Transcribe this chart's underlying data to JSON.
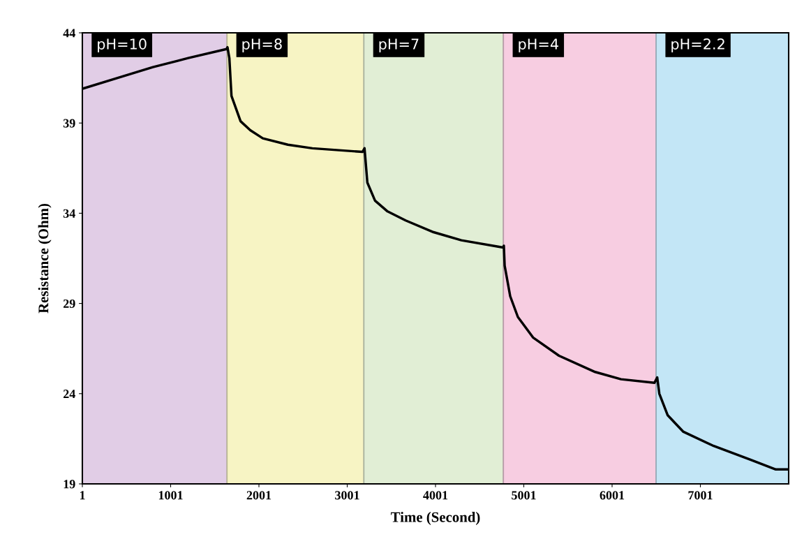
{
  "chart_data": {
    "type": "line",
    "xlabel": "Time (Second)",
    "ylabel": "Resistance (Ohm)",
    "xlim": [
      1,
      8001
    ],
    "ylim": [
      19,
      44
    ],
    "xticks": [
      1,
      1001,
      2001,
      3001,
      4001,
      5001,
      6001,
      7001
    ],
    "yticks": [
      19,
      24,
      29,
      34,
      39,
      44
    ],
    "grid": false,
    "legend": false,
    "marker": "none",
    "line_style": "solid",
    "series": [
      {
        "color": "#000000",
        "x": [
          1,
          400,
          800,
          1200,
          1634,
          1645,
          1666,
          1690,
          1793,
          1903,
          2045,
          2329,
          2606,
          3174,
          3197,
          3229,
          3316,
          3458,
          3663,
          3979,
          4294,
          4768,
          4775,
          4784,
          4847,
          4934,
          5108,
          5400,
          5810,
          6102,
          6481,
          6512,
          6536,
          6631,
          6805,
          7152,
          7563,
          7855,
          7981
        ],
        "values": [
          40.9,
          41.5,
          42.1,
          42.6,
          43.1,
          43.2,
          42.6,
          40.5,
          39.1,
          38.6,
          38.15,
          37.8,
          37.6,
          37.4,
          37.6,
          35.7,
          34.7,
          34.1,
          33.6,
          32.95,
          32.5,
          32.1,
          32.2,
          31.1,
          29.4,
          28.25,
          27.1,
          26.1,
          25.2,
          24.8,
          24.6,
          24.9,
          24.0,
          22.8,
          21.9,
          21.1,
          20.35,
          19.8,
          19.8
        ]
      }
    ],
    "bands": [
      {
        "axis": "x",
        "from": 1,
        "to": 1640,
        "label": "pH=10",
        "color": "#e1cde6"
      },
      {
        "axis": "x",
        "from": 1640,
        "to": 3190,
        "label": "pH=8",
        "color": "#f7f4c4"
      },
      {
        "axis": "x",
        "from": 3190,
        "to": 4770,
        "label": "pH=7",
        "color": "#e1eed5"
      },
      {
        "axis": "x",
        "from": 4770,
        "to": 6500,
        "label": "pH=4",
        "color": "#f7cde1"
      },
      {
        "axis": "x",
        "from": 6500,
        "to": 8001,
        "label": "pH=2.2",
        "color": "#c3e6f6"
      }
    ]
  }
}
